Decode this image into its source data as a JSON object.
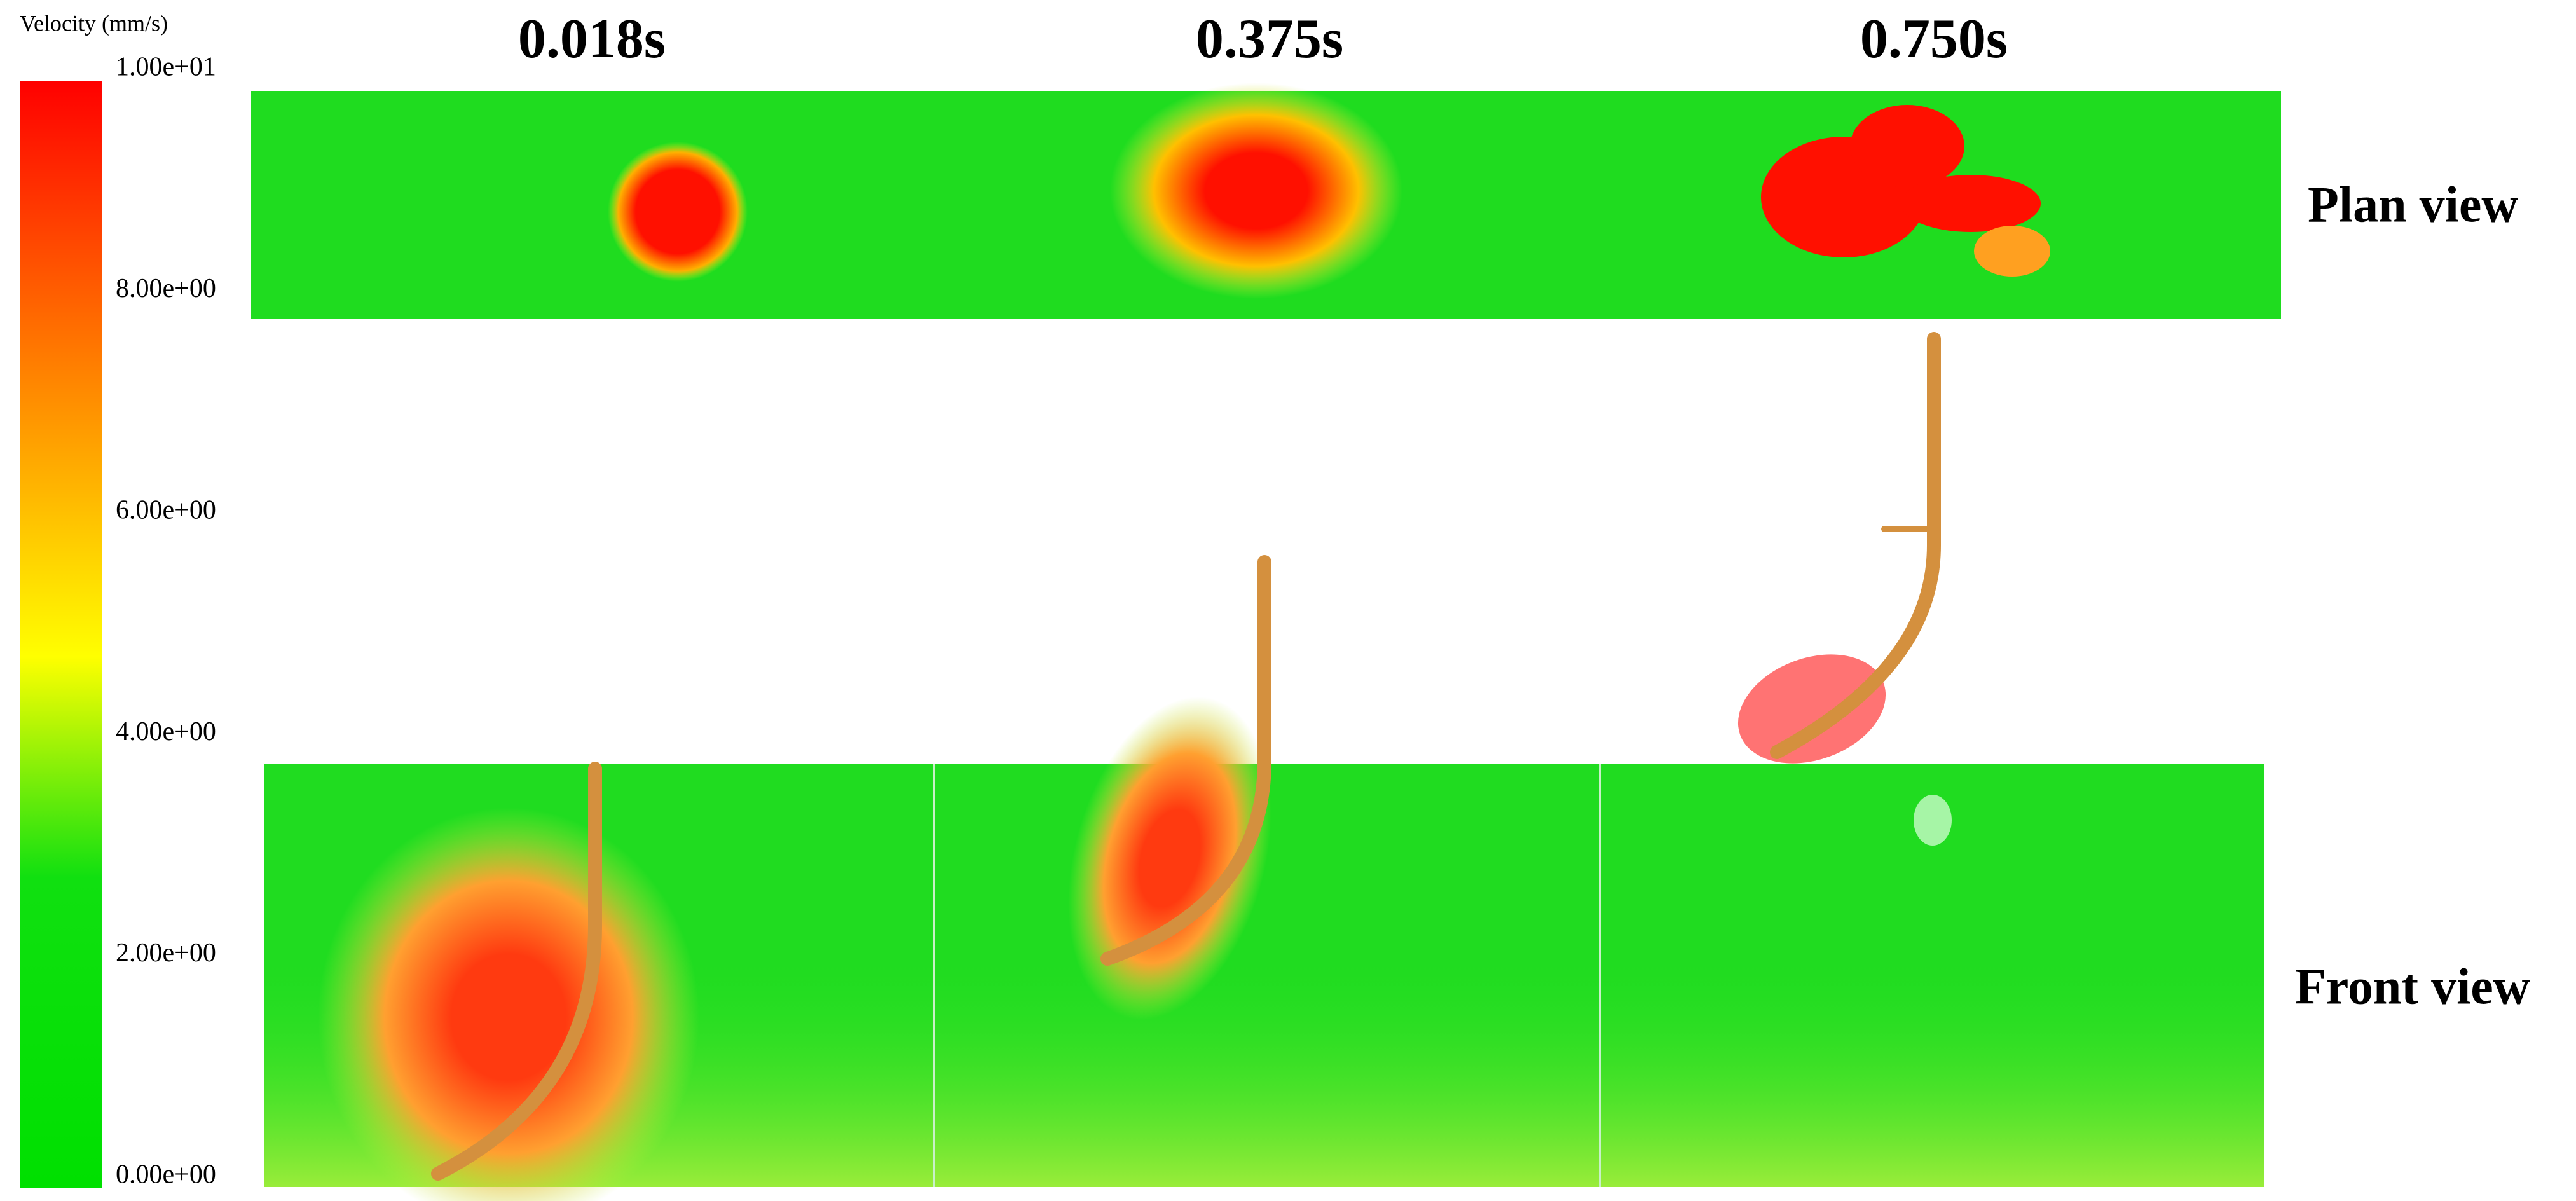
{
  "colorbar": {
    "title": "Velocity (mm/s)",
    "ticks": [
      "1.00e+01",
      "8.00e+00",
      "6.00e+00",
      "4.00e+00",
      "2.00e+00",
      "0.00e+00"
    ]
  },
  "times": [
    "0.018s",
    "0.375s",
    "0.750s"
  ],
  "views": {
    "plan": "Plan view",
    "front": "Front view"
  }
}
